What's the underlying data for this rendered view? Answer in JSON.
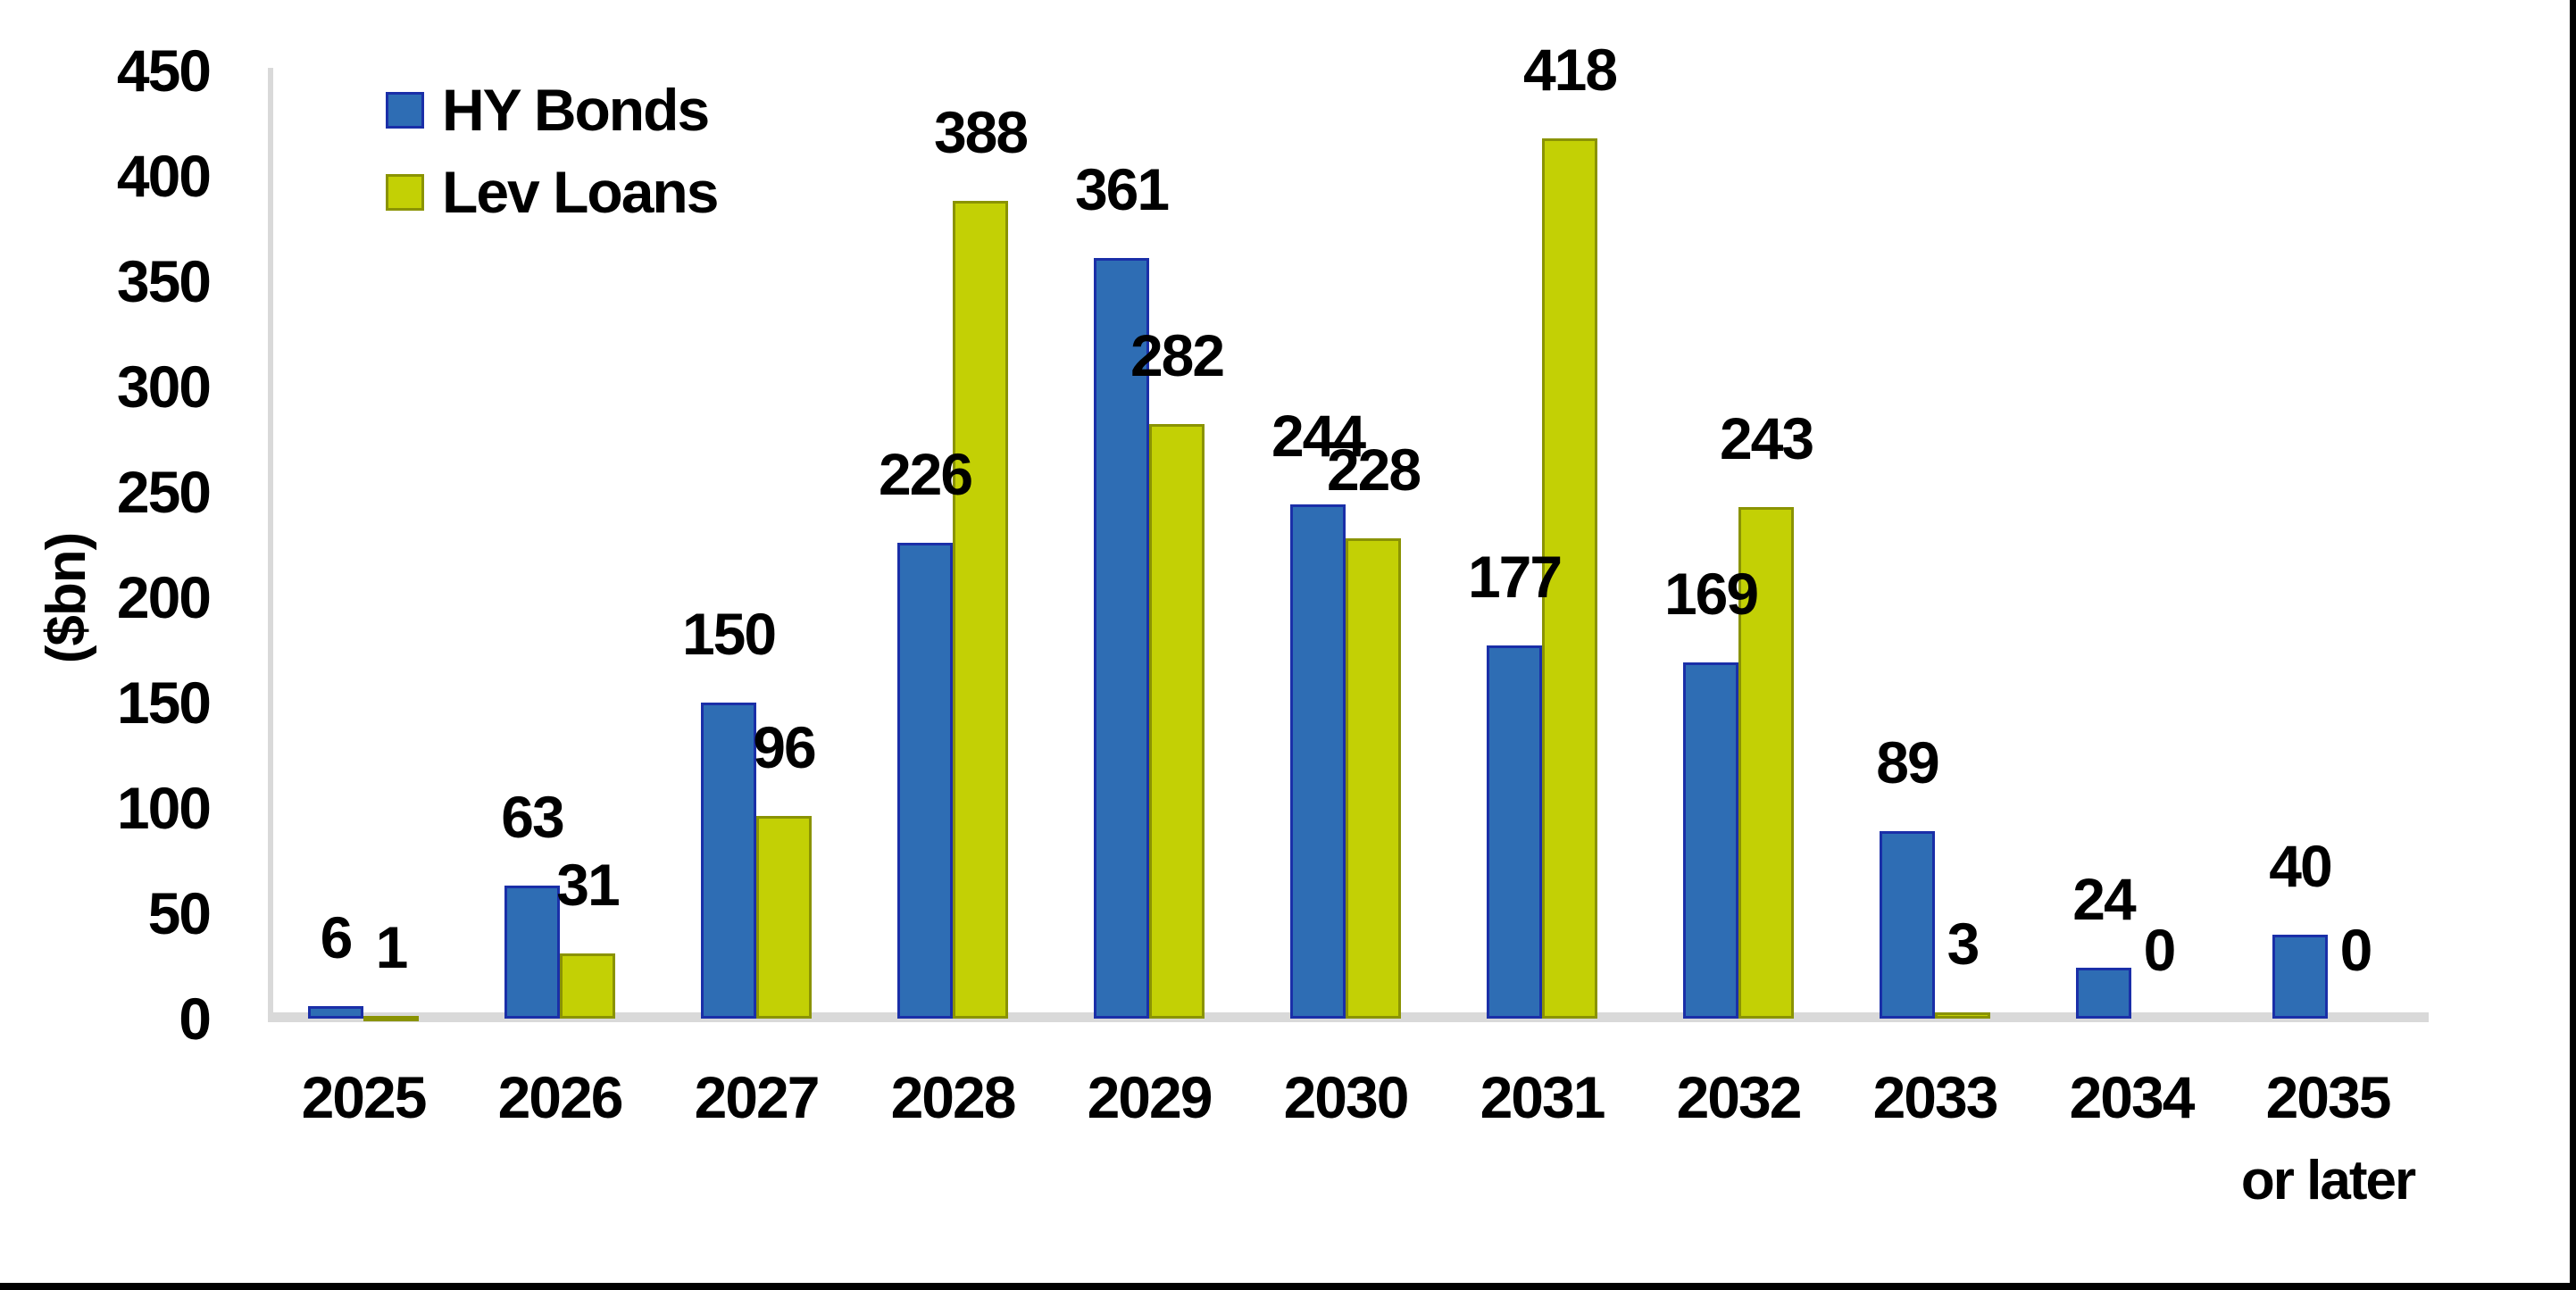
{
  "chart_data": {
    "type": "bar",
    "title": "",
    "ylabel": "($bn)",
    "xlabel": "",
    "ylim": [
      0,
      450
    ],
    "ytick_step": 50,
    "yticks": [
      0,
      50,
      100,
      150,
      200,
      250,
      300,
      350,
      400,
      450
    ],
    "grid": "off",
    "legend_position": "top-left",
    "data_labels": "outside-end",
    "categories": [
      "2025",
      "2026",
      "2027",
      "2028",
      "2029",
      "2030",
      "2031",
      "2032",
      "2033",
      "2034",
      "2035"
    ],
    "category_sublabels": [
      "",
      "",
      "",
      "",
      "",
      "",
      "",
      "",
      "",
      "",
      "or later"
    ],
    "series": [
      {
        "name": "HY Bonds",
        "values": [
          6,
          63,
          150,
          226,
          361,
          244,
          177,
          169,
          89,
          24,
          40
        ],
        "fill": "#2E6DB4",
        "border": "#1A2FA8"
      },
      {
        "name": "Lev Loans",
        "values": [
          1,
          31,
          96,
          388,
          282,
          228,
          418,
          243,
          3,
          0,
          0
        ],
        "fill": "#C3D005",
        "border": "#8A9303"
      }
    ],
    "colors": {
      "axis_line": "#D9D9D9",
      "text": "#000000",
      "frame_border": "#000000",
      "background": "#FFFFFF"
    }
  }
}
